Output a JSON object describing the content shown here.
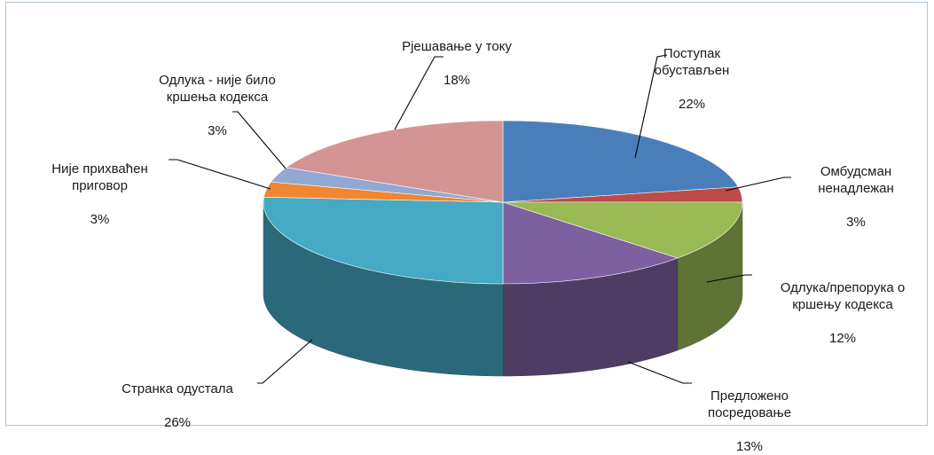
{
  "chart_data": {
    "type": "pie",
    "style": "3d",
    "legend": "none",
    "slices": [
      {
        "label": "Поступак обустављен",
        "value": 22,
        "value_label": "22%",
        "color": "#4a7ebb"
      },
      {
        "label": "Омбудсман ненадлежан",
        "value": 3,
        "value_label": "3%",
        "color": "#be4b48"
      },
      {
        "label": "Одлука/препорука о кршењу кодекса",
        "value": 12,
        "value_label": "12%",
        "color": "#98b954"
      },
      {
        "label": "Предложено посредовање",
        "value": 13,
        "value_label": "13%",
        "color": "#7d60a0"
      },
      {
        "label": "Странка одустала",
        "value": 26,
        "value_label": "26%",
        "color": "#46aac5"
      },
      {
        "label": "Није прихваћен приговор",
        "value": 3,
        "value_label": "3%",
        "color": "#f0862f"
      },
      {
        "label": "Одлука - није било кршења кодекса",
        "value": 3,
        "value_label": "3%",
        "color": "#92a9d4"
      },
      {
        "label": "Рјешавање у току",
        "value": 18,
        "value_label": "18%",
        "color": "#d49493"
      }
    ]
  }
}
